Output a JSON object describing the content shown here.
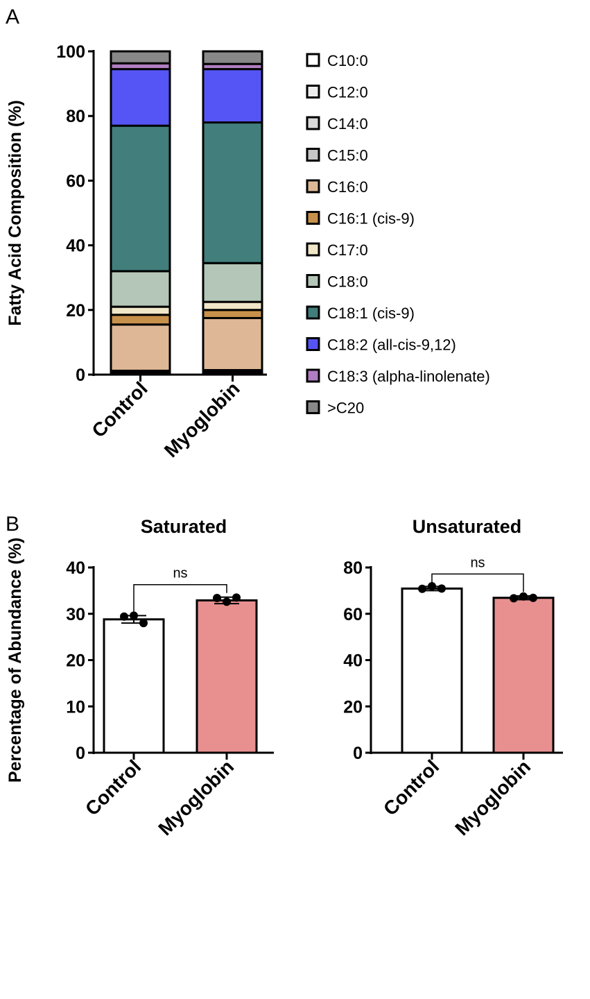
{
  "chart_data": [
    {
      "type": "bar",
      "stacked": true,
      "panel_label": "A",
      "ylabel": "Fatty Acid Composition (%)",
      "ylim": [
        0,
        100
      ],
      "yticks": [
        0,
        20,
        40,
        60,
        80,
        100
      ],
      "categories": [
        "Control",
        "Myoglobin"
      ],
      "series": [
        {
          "name": "C10:0",
          "color": "#ffffff",
          "values": [
            0.2,
            0.2
          ]
        },
        {
          "name": "C12:0",
          "color": "#eeeeee",
          "values": [
            0.3,
            0.3
          ]
        },
        {
          "name": "C14:0",
          "color": "#d9d9d9",
          "values": [
            0.4,
            0.5
          ]
        },
        {
          "name": "C15:0",
          "color": "#c6c6c6",
          "values": [
            0.3,
            0.4
          ]
        },
        {
          "name": "C16:0",
          "color": "#deb896",
          "values": [
            14.3,
            16.1
          ]
        },
        {
          "name": "C16:1 (cis-9)",
          "color": "#c8914b",
          "values": [
            3.0,
            2.5
          ]
        },
        {
          "name": "C17:0",
          "color": "#f0e6c8",
          "values": [
            2.5,
            2.5
          ]
        },
        {
          "name": "C18:0",
          "color": "#b4c6b8",
          "values": [
            11.0,
            12.0
          ]
        },
        {
          "name": "C18:1 (cis-9)",
          "color": "#417e7c",
          "values": [
            45.0,
            43.5
          ]
        },
        {
          "name": "C18:2 (all-cis-9,12)",
          "color": "#5555f5",
          "values": [
            17.5,
            16.5
          ]
        },
        {
          "name": "C18:3 (alpha-linolenate)",
          "color": "#b07ec0",
          "values": [
            1.8,
            1.6
          ]
        },
        {
          "name": ">C20",
          "color": "#888888",
          "values": [
            3.7,
            3.9
          ]
        }
      ],
      "legend": "right"
    },
    {
      "type": "bar",
      "panel_label": "B",
      "title": "Saturated",
      "ylabel": "Percentage of Abundance (%)",
      "ylim": [
        0,
        40
      ],
      "yticks": [
        0,
        10,
        20,
        30,
        40
      ],
      "categories": [
        "Control",
        "Myoglobin"
      ],
      "values": [
        28.8,
        32.9
      ],
      "errors": [
        0.8,
        0.7
      ],
      "points": [
        [
          29.4,
          29.6,
          28.0
        ],
        [
          33.4,
          32.6,
          33.5
        ]
      ],
      "colors": [
        "#ffffff",
        "#e89090"
      ],
      "annotation": "ns"
    },
    {
      "type": "bar",
      "title": "Unsaturated",
      "ylim": [
        0,
        80
      ],
      "yticks": [
        0,
        20,
        40,
        60,
        80
      ],
      "categories": [
        "Control",
        "Myoglobin"
      ],
      "values": [
        70.9,
        66.9
      ],
      "errors": [
        0.9,
        0.8
      ],
      "points": [
        [
          70.8,
          71.9,
          70.9
        ],
        [
          66.7,
          67.5,
          66.9
        ]
      ],
      "colors": [
        "#ffffff",
        "#e89090"
      ],
      "annotation": "ns"
    }
  ]
}
